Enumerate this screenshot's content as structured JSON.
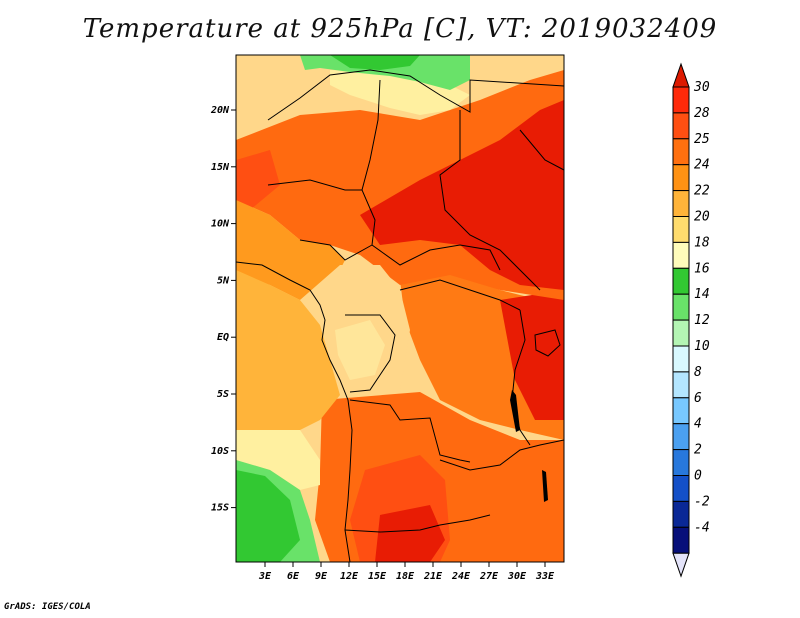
{
  "title": "Temperature at 925hPa [C], VT: 2019032409",
  "credit": "GrADS: IGES/COLA",
  "map": {
    "lat_labels": [
      "20N",
      "15N",
      "10N",
      "5N",
      "EQ",
      "5S",
      "10S",
      "15S"
    ],
    "lon_labels": [
      "3E",
      "6E",
      "9E",
      "12E",
      "15E",
      "18E",
      "21E",
      "24E",
      "27E",
      "30E",
      "33E"
    ]
  },
  "colorbar": {
    "levels": [
      {
        "label": "30",
        "color": "#ff2a0a"
      },
      {
        "label": "28",
        "color": "#ff4f12"
      },
      {
        "label": "25",
        "color": "#ff7010"
      },
      {
        "label": "24",
        "color": "#ff9214"
      },
      {
        "label": "22",
        "color": "#ffb43a"
      },
      {
        "label": "20",
        "color": "#ffdc6e"
      },
      {
        "label": "18",
        "color": "#fffcbb"
      },
      {
        "label": "16",
        "color": "#32c832"
      },
      {
        "label": "14",
        "color": "#69e269"
      },
      {
        "label": "12",
        "color": "#b4f5b4"
      },
      {
        "label": "10",
        "color": "#d9f9ff"
      },
      {
        "label": "8",
        "color": "#b4e6ff"
      },
      {
        "label": "6",
        "color": "#78c8ff"
      },
      {
        "label": "4",
        "color": "#4ba0f0"
      },
      {
        "label": "2",
        "color": "#2878dc"
      },
      {
        "label": "0",
        "color": "#1450c8"
      },
      {
        "label": "-2",
        "color": "#0a2896"
      },
      {
        "label": "-4",
        "color": "#07107a"
      }
    ],
    "top_color": "#dd1a00",
    "bottom_color": "#e4e4fa"
  },
  "fields": {
    "background": "#ffd78a",
    "hot_south": "#ff6a10",
    "very_hot": "#e81c04",
    "hot_east": "#ff4f12",
    "warm_orange": "#ff9a1e",
    "mid_orange": "#ffb43a",
    "pale_yellow": "#fff0a0",
    "green_bright": "#32c832",
    "green_light": "#69e269"
  }
}
